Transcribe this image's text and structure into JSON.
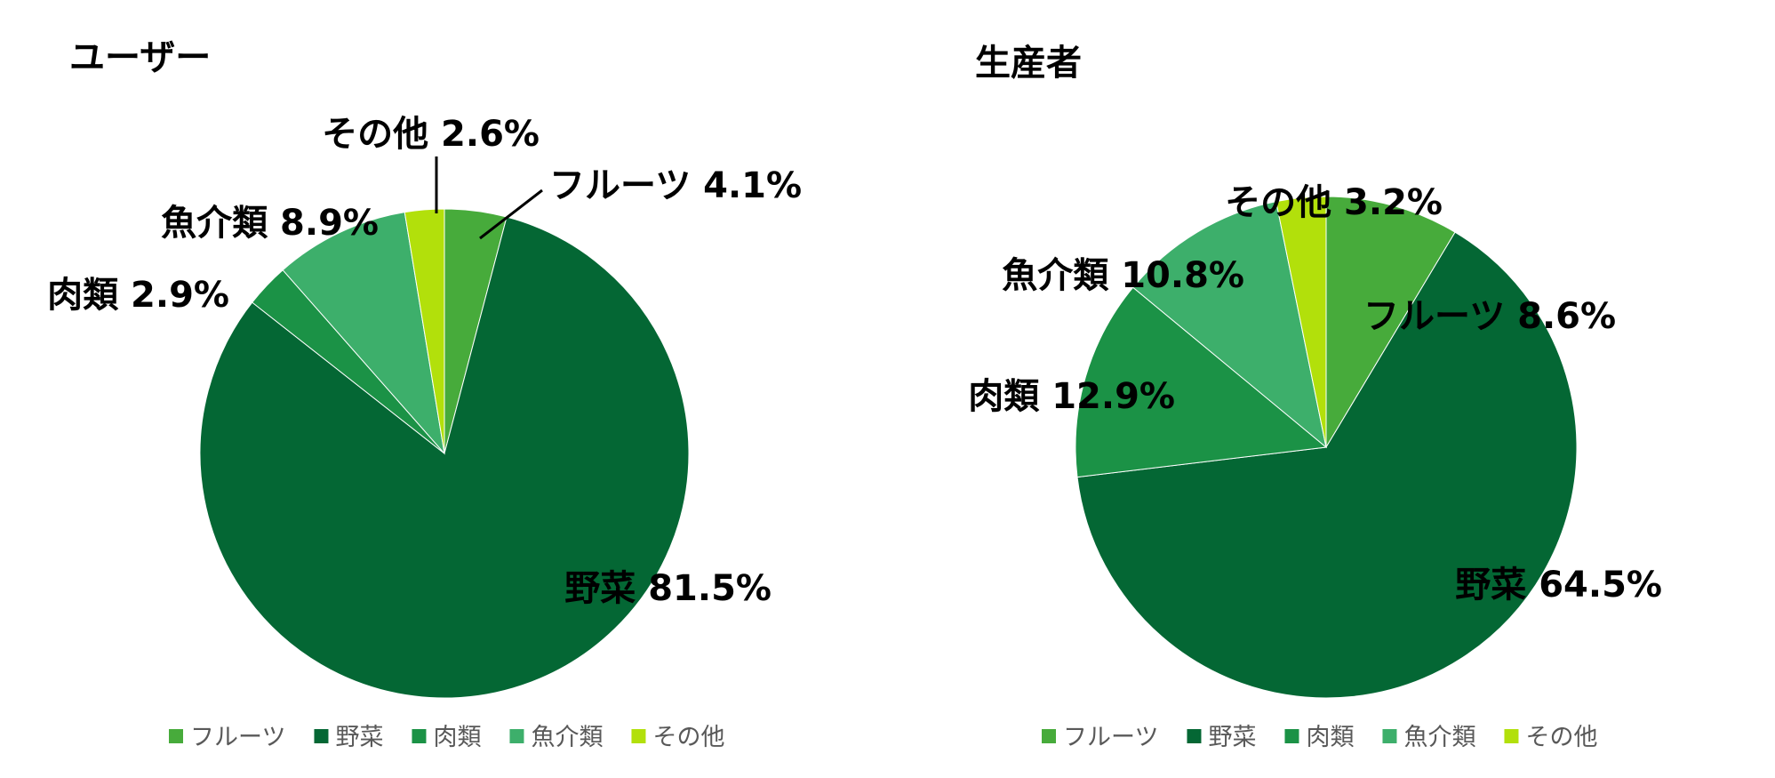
{
  "chart_data": [
    {
      "type": "pie",
      "title": "ユーザー",
      "categories": [
        "フルーツ",
        "野菜",
        "肉類",
        "魚介類",
        "その他"
      ],
      "values": [
        4.1,
        81.5,
        2.9,
        8.9,
        2.6
      ],
      "data_labels": [
        "フルーツ 4.1%",
        "野菜 81.5%",
        "肉類 2.9%",
        "魚介類 8.9%",
        "その他 2.6%"
      ],
      "legend": [
        "フルーツ",
        "野菜",
        "肉類",
        "魚介類",
        "その他"
      ],
      "legend_position": "bottom",
      "colors": [
        "#47ab3b",
        "#046734",
        "#1b9246",
        "#3daf6b",
        "#b2e00b"
      ]
    },
    {
      "type": "pie",
      "title": "生産者",
      "categories": [
        "フルーツ",
        "野菜",
        "肉類",
        "魚介類",
        "その他"
      ],
      "values": [
        8.6,
        64.5,
        12.9,
        10.8,
        3.2
      ],
      "data_labels": [
        "フルーツ 8.6%",
        "野菜 64.5%",
        "肉類 12.9%",
        "魚介類 10.8%",
        "その他 3.2%"
      ],
      "legend": [
        "フルーツ",
        "野菜",
        "肉類",
        "魚介類",
        "その他"
      ],
      "legend_position": "bottom",
      "colors": [
        "#47ab3b",
        "#046734",
        "#1b9246",
        "#3daf6b",
        "#b2e00b"
      ]
    }
  ]
}
